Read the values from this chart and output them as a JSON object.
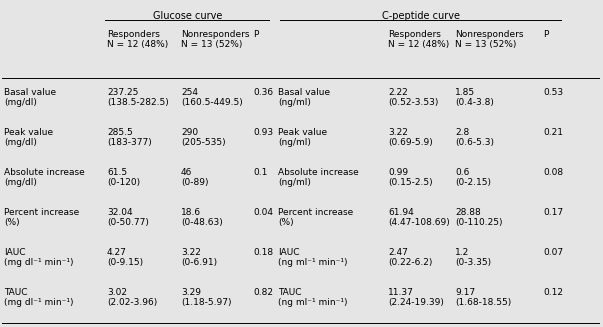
{
  "bg_color": "#e5e5e5",
  "glucose_header": "Glucose curve",
  "cpeptide_header": "C-peptide curve",
  "rows": [
    {
      "label1": "Basal value",
      "label2": "(mg/dl)",
      "g_resp": "237.25",
      "g_resp2": "(138.5-282.5)",
      "g_nonresp": "254",
      "g_nonresp2": "(160.5-449.5)",
      "g_p": "0.36",
      "label3": "Basal value",
      "label4": "(ng/ml)",
      "c_resp": "2.22",
      "c_resp2": "(0.52-3.53)",
      "c_nonresp": "1.85",
      "c_nonresp2": "(0.4-3.8)",
      "c_p": "0.53"
    },
    {
      "label1": "Peak value",
      "label2": "(mg/dl)",
      "g_resp": "285.5",
      "g_resp2": "(183-377)",
      "g_nonresp": "290",
      "g_nonresp2": "(205-535)",
      "g_p": "0.93",
      "label3": "Peak value",
      "label4": "(ng/ml)",
      "c_resp": "3.22",
      "c_resp2": "(0.69-5.9)",
      "c_nonresp": "2.8",
      "c_nonresp2": "(0.6-5.3)",
      "c_p": "0.21"
    },
    {
      "label1": "Absolute increase",
      "label2": "(mg/dl)",
      "g_resp": "61.5",
      "g_resp2": "(0-120)",
      "g_nonresp": "46",
      "g_nonresp2": "(0-89)",
      "g_p": "0.1",
      "label3": "Absolute increase",
      "label4": "(ng/ml)",
      "c_resp": "0.99",
      "c_resp2": "(0.15-2.5)",
      "c_nonresp": "0.6",
      "c_nonresp2": "(0-2.15)",
      "c_p": "0.08"
    },
    {
      "label1": "Percent increase",
      "label2": "(%)",
      "g_resp": "32.04",
      "g_resp2": "(0-50.77)",
      "g_nonresp": "18.6",
      "g_nonresp2": "(0-48.63)",
      "g_p": "0.04",
      "label3": "Percent increase",
      "label4": "(%)",
      "c_resp": "61.94",
      "c_resp2": "(4.47-108.69)",
      "c_nonresp": "28.88",
      "c_nonresp2": "(0-110.25)",
      "c_p": "0.17"
    },
    {
      "label1": "IAUC",
      "label2": "(mg dl⁻¹ min⁻¹)",
      "g_resp": "4.27",
      "g_resp2": "(0-9.15)",
      "g_nonresp": "3.22",
      "g_nonresp2": "(0-6.91)",
      "g_p": "0.18",
      "label3": "IAUC",
      "label4": "(ng ml⁻¹ min⁻¹)",
      "c_resp": "2.47",
      "c_resp2": "(0.22-6.2)",
      "c_nonresp": "1.2",
      "c_nonresp2": "(0-3.35)",
      "c_p": "0.07"
    },
    {
      "label1": "TAUC",
      "label2": "(mg dl⁻¹ min⁻¹)",
      "g_resp": "3.02",
      "g_resp2": "(2.02-3.96)",
      "g_nonresp": "3.29",
      "g_nonresp2": "(1.18-5.97)",
      "g_p": "0.82",
      "label3": "TAUC",
      "label4": "(ng ml⁻¹ min⁻¹)",
      "c_resp": "11.37",
      "c_resp2": "(2.24-19.39)",
      "c_nonresp": "9.17",
      "c_nonresp2": "(1.68-18.55)",
      "c_p": "0.12"
    }
  ]
}
